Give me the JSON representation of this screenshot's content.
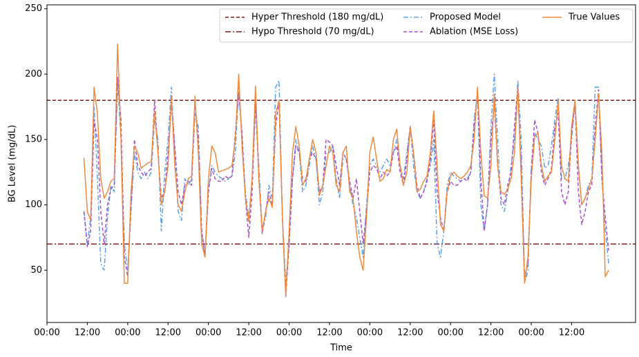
{
  "chart_data": {
    "type": "line",
    "xlabel": "Time",
    "ylabel": "BG Level (mg/dL)",
    "xlim": [
      0,
      175
    ],
    "ylim": [
      10,
      253
    ],
    "xticks": [
      {
        "value": 0,
        "label": "00:00"
      },
      {
        "value": 12,
        "label": "12:00"
      },
      {
        "value": 24,
        "label": "00:00"
      },
      {
        "value": 36,
        "label": "12:00"
      },
      {
        "value": 48,
        "label": "00:00"
      },
      {
        "value": 60,
        "label": "12:00"
      },
      {
        "value": 72,
        "label": "00:00"
      },
      {
        "value": 84,
        "label": "12:00"
      },
      {
        "value": 96,
        "label": "00:00"
      },
      {
        "value": 108,
        "label": "12:00"
      },
      {
        "value": 120,
        "label": "00:00"
      },
      {
        "value": 132,
        "label": "12:00"
      },
      {
        "value": 144,
        "label": "00:00"
      },
      {
        "value": 156,
        "label": "12:00"
      }
    ],
    "yticks": [
      50,
      100,
      150,
      200,
      250
    ],
    "legend": "upper right",
    "legend_columns": 3,
    "thresholds": [
      {
        "name": "Hyper Threshold (180 mg/dL)",
        "value": 180,
        "color": "#7b1a1a",
        "dash": "5,3"
      },
      {
        "name": "Hypo Threshold (70 mg/dL)",
        "value": 70,
        "color": "#7b1a1a",
        "dash": "8,3,2,3"
      }
    ],
    "x": [
      11,
      12,
      13,
      14,
      15,
      16,
      17,
      18,
      19,
      20,
      21,
      22,
      23,
      24,
      25,
      26,
      27,
      28,
      29,
      30,
      31,
      32,
      33,
      34,
      35,
      36,
      37,
      38,
      39,
      40,
      41,
      42,
      43,
      44,
      45,
      46,
      47,
      48,
      49,
      50,
      51,
      52,
      53,
      54,
      55,
      56,
      57,
      58,
      59,
      60,
      61,
      62,
      63,
      64,
      65,
      66,
      67,
      68,
      69,
      70,
      71,
      72,
      73,
      74,
      75,
      76,
      77,
      78,
      79,
      80,
      81,
      82,
      83,
      84,
      85,
      86,
      87,
      88,
      89,
      90,
      91,
      92,
      93,
      94,
      95,
      96,
      97,
      98,
      99,
      100,
      101,
      102,
      103,
      104,
      105,
      106,
      107,
      108,
      109,
      110,
      111,
      112,
      113,
      114,
      115,
      116,
      117,
      118,
      119,
      120,
      121,
      122,
      123,
      124,
      125,
      126,
      127,
      128,
      129,
      130,
      131,
      132,
      133,
      134,
      135,
      136,
      137,
      138,
      139,
      140,
      141,
      142,
      143,
      144,
      145,
      146,
      147,
      148,
      149,
      150,
      151,
      152,
      153,
      154,
      155,
      156,
      157,
      158,
      159,
      160,
      161,
      162,
      163,
      164,
      165,
      166,
      167
    ],
    "series": [
      {
        "name": "Proposed Model",
        "color": "#5aa0e8",
        "dash": "7,3,2,3",
        "values": [
          95,
          70,
          90,
          175,
          120,
          55,
          50,
          90,
          115,
          110,
          195,
          150,
          70,
          50,
          95,
          140,
          125,
          120,
          125,
          120,
          125,
          165,
          150,
          80,
          125,
          150,
          190,
          140,
          95,
          88,
          120,
          115,
          120,
          170,
          160,
          80,
          60,
          110,
          130,
          125,
          122,
          120,
          118,
          120,
          122,
          140,
          190,
          150,
          110,
          90,
          120,
          175,
          130,
          80,
          90,
          115,
          105,
          190,
          195,
          90,
          40,
          70,
          120,
          150,
          140,
          110,
          115,
          130,
          145,
          135,
          100,
          110,
          140,
          140,
          145,
          120,
          105,
          135,
          135,
          115,
          100,
          90,
          75,
          60,
          100,
          130,
          135,
          130,
          125,
          130,
          135,
          130,
          140,
          150,
          130,
          120,
          140,
          160,
          130,
          110,
          105,
          110,
          120,
          130,
          150,
          70,
          60,
          80,
          115,
          125,
          122,
          120,
          118,
          120,
          120,
          125,
          165,
          185,
          100,
          80,
          100,
          160,
          200,
          150,
          100,
          95,
          110,
          130,
          150,
          195,
          150,
          40,
          50,
          130,
          155,
          150,
          145,
          128,
          130,
          145,
          165,
          182,
          120,
          120,
          130,
          150,
          180,
          130,
          100,
          105,
          115,
          120,
          190,
          190,
          120,
          80,
          55
        ]
      },
      {
        "name": "Ablation (MSE Loss)",
        "color": "#a64fd0",
        "dash": "5,3",
        "values": [
          95,
          68,
          80,
          165,
          150,
          95,
          70,
          100,
          112,
          115,
          198,
          165,
          60,
          45,
          100,
          150,
          130,
          125,
          122,
          125,
          128,
          180,
          140,
          105,
          110,
          140,
          178,
          145,
          110,
          100,
          115,
          118,
          115,
          178,
          150,
          80,
          62,
          110,
          128,
          120,
          118,
          118,
          122,
          120,
          122,
          155,
          185,
          155,
          105,
          75,
          110,
          180,
          120,
          78,
          95,
          110,
          100,
          160,
          180,
          90,
          30,
          70,
          120,
          145,
          140,
          120,
          118,
          135,
          140,
          135,
          110,
          115,
          150,
          148,
          145,
          130,
          115,
          140,
          135,
          118,
          105,
          120,
          95,
          70,
          95,
          125,
          130,
          128,
          120,
          125,
          122,
          125,
          140,
          145,
          125,
          115,
          135,
          160,
          140,
          115,
          105,
          110,
          118,
          135,
          165,
          110,
          90,
          80,
          110,
          118,
          115,
          115,
          118,
          120,
          118,
          125,
          160,
          185,
          120,
          80,
          100,
          150,
          178,
          130,
          105,
          100,
          115,
          125,
          160,
          190,
          130,
          45,
          55,
          125,
          165,
          155,
          125,
          115,
          120,
          128,
          160,
          170,
          110,
          100,
          110,
          155,
          178,
          110,
          85,
          95,
          110,
          115,
          160,
          188,
          120,
          90,
          65
        ]
      },
      {
        "name": "True Values",
        "color": "#f08a3c",
        "dash": "",
        "values": [
          136,
          95,
          88,
          190,
          170,
          120,
          105,
          110,
          118,
          120,
          223,
          150,
          40,
          40,
          110,
          145,
          140,
          128,
          130,
          132,
          133,
          172,
          140,
          100,
          110,
          130,
          183,
          130,
          100,
          95,
          110,
          120,
          122,
          183,
          140,
          70,
          60,
          120,
          145,
          140,
          125,
          126,
          127,
          128,
          130,
          150,
          200,
          145,
          105,
          87,
          120,
          191,
          120,
          80,
          95,
          105,
          98,
          170,
          180,
          90,
          31,
          80,
          140,
          160,
          145,
          115,
          120,
          135,
          150,
          140,
          107,
          115,
          130,
          145,
          140,
          115,
          110,
          140,
          145,
          110,
          105,
          80,
          60,
          50,
          90,
          140,
          152,
          135,
          118,
          120,
          127,
          125,
          150,
          158,
          130,
          115,
          125,
          160,
          140,
          110,
          112,
          118,
          122,
          140,
          172,
          130,
          85,
          80,
          110,
          122,
          125,
          122,
          120,
          122,
          125,
          130,
          150,
          190,
          140,
          107,
          105,
          130,
          185,
          130,
          110,
          108,
          112,
          120,
          140,
          190,
          120,
          40,
          60,
          120,
          152,
          155,
          130,
          118,
          122,
          125,
          150,
          180,
          130,
          120,
          118,
          160,
          180,
          130,
          100,
          105,
          112,
          120,
          150,
          185,
          140,
          45,
          50
        ]
      }
    ]
  }
}
